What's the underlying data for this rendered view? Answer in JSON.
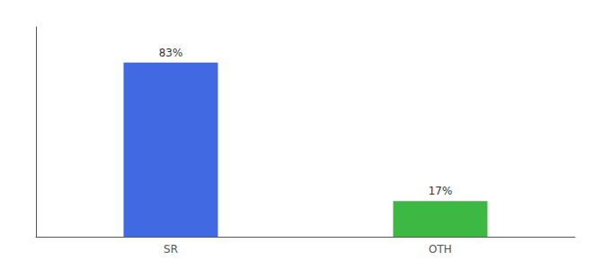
{
  "chart_data": {
    "type": "bar",
    "categories": [
      "SR",
      "OTH"
    ],
    "values": [
      83,
      17
    ],
    "value_labels": [
      "83%",
      "17%"
    ],
    "colors": [
      "#4169E1",
      "#3CB843"
    ],
    "ylim": [
      0,
      100
    ],
    "data_labels": true,
    "tick_labels": "x",
    "grid": false
  }
}
